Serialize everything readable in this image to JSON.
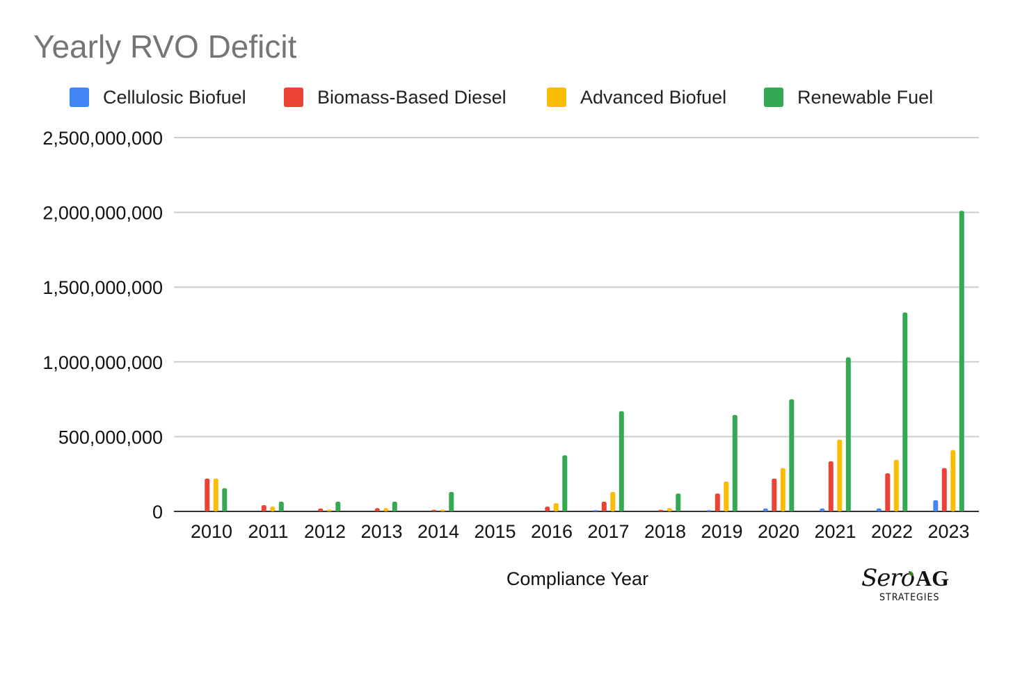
{
  "chart_data": {
    "type": "bar",
    "title": "Yearly RVO Deficit",
    "xlabel": "Compliance Year",
    "ylabel": "",
    "ylim": [
      0,
      2500000000
    ],
    "yticks": [
      0,
      500000000,
      1000000000,
      1500000000,
      2000000000,
      2500000000
    ],
    "ytick_labels": [
      "0",
      "500,000,000",
      "1,000,000,000",
      "1,500,000,000",
      "2,000,000,000",
      "2,500,000,000"
    ],
    "grid": true,
    "legend_position": "top",
    "categories": [
      "2010",
      "2011",
      "2012",
      "2013",
      "2014",
      "2015",
      "2016",
      "2017",
      "2018",
      "2019",
      "2020",
      "2021",
      "2022",
      "2023"
    ],
    "series": [
      {
        "name": "Cellulosic Biofuel",
        "color": "#4285f4",
        "values": [
          0,
          0,
          0,
          0,
          0,
          0,
          0,
          8000000,
          0,
          8000000,
          20000000,
          20000000,
          20000000,
          75000000
        ]
      },
      {
        "name": "Biomass-Based Diesel",
        "color": "#ea4335",
        "values": [
          220000000,
          42000000,
          20000000,
          22000000,
          10000000,
          0,
          32000000,
          65000000,
          10000000,
          120000000,
          220000000,
          335000000,
          255000000,
          290000000
        ]
      },
      {
        "name": "Advanced Biofuel",
        "color": "#fbbc04",
        "values": [
          220000000,
          32000000,
          12000000,
          22000000,
          12000000,
          0,
          55000000,
          130000000,
          22000000,
          200000000,
          290000000,
          480000000,
          345000000,
          410000000
        ]
      },
      {
        "name": "Renewable Fuel",
        "color": "#34a853",
        "values": [
          155000000,
          65000000,
          65000000,
          65000000,
          130000000,
          0,
          375000000,
          670000000,
          120000000,
          645000000,
          750000000,
          1030000000,
          1330000000,
          2010000000
        ]
      }
    ]
  },
  "logo": {
    "script_text": "Sero",
    "emblem_text": "AG",
    "sub_text": "STRATEGIES"
  }
}
